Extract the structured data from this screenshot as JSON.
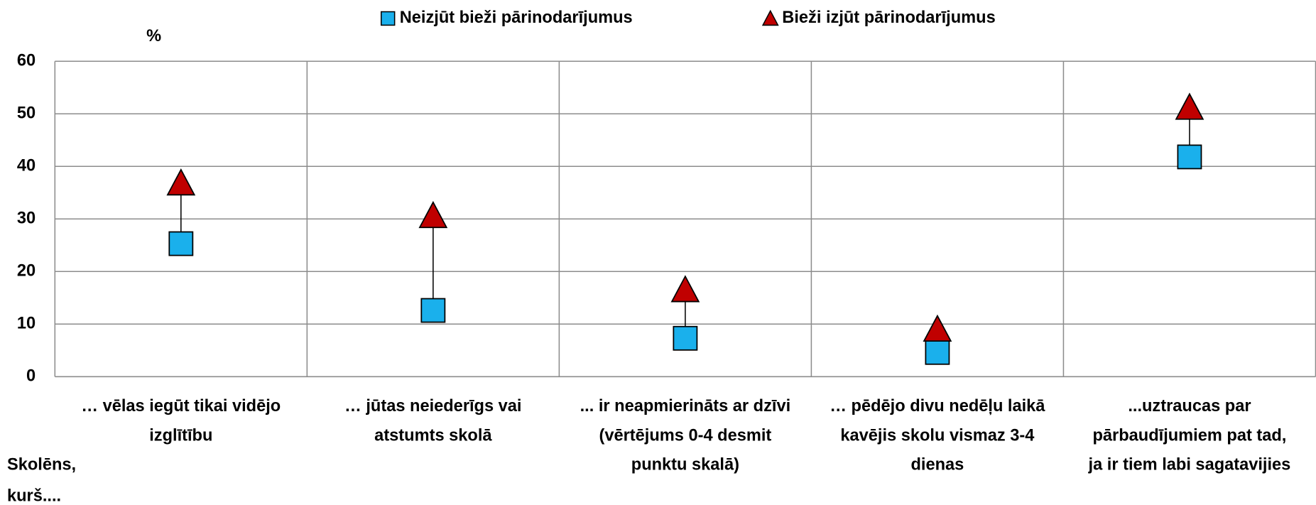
{
  "chart_data": {
    "type": "dot",
    "y_axis_label": "%",
    "annotation": [
      "Skolēns,",
      "kurš...."
    ],
    "categories": [
      [
        "… vēlas iegūt tikai vidējo",
        "izglītību"
      ],
      [
        "… jūtas neiederīgs vai",
        "atstumts skolā"
      ],
      [
        "... ir neapmierināts ar dzīvi",
        "(vērtējums 0-4 desmit",
        "punktu skalā)"
      ],
      [
        "… pēdējo divu nedēļu laikā",
        "kavējis skolu vismaz 3-4",
        "dienas"
      ],
      [
        "...uztraucas par",
        "pārbaudījumiem pat tad,",
        "ja ir tiem labi sagatavijies"
      ]
    ],
    "series": [
      {
        "name": "Neizjūt bieži pārinodarījumus",
        "color": "#1ab0ec",
        "marker": "square",
        "values": [
          25.3,
          12.6,
          7.3,
          4.6,
          41.8
        ]
      },
      {
        "name": "Bieži izjūt pārinodarījumus",
        "color": "#c00000",
        "marker": "triangle",
        "values": [
          36.5,
          30.3,
          16.2,
          8.7,
          50.9
        ]
      }
    ],
    "ylim": [
      0,
      60
    ],
    "yticks": [
      0,
      10,
      20,
      30,
      40,
      50,
      60
    ],
    "grid": true
  }
}
